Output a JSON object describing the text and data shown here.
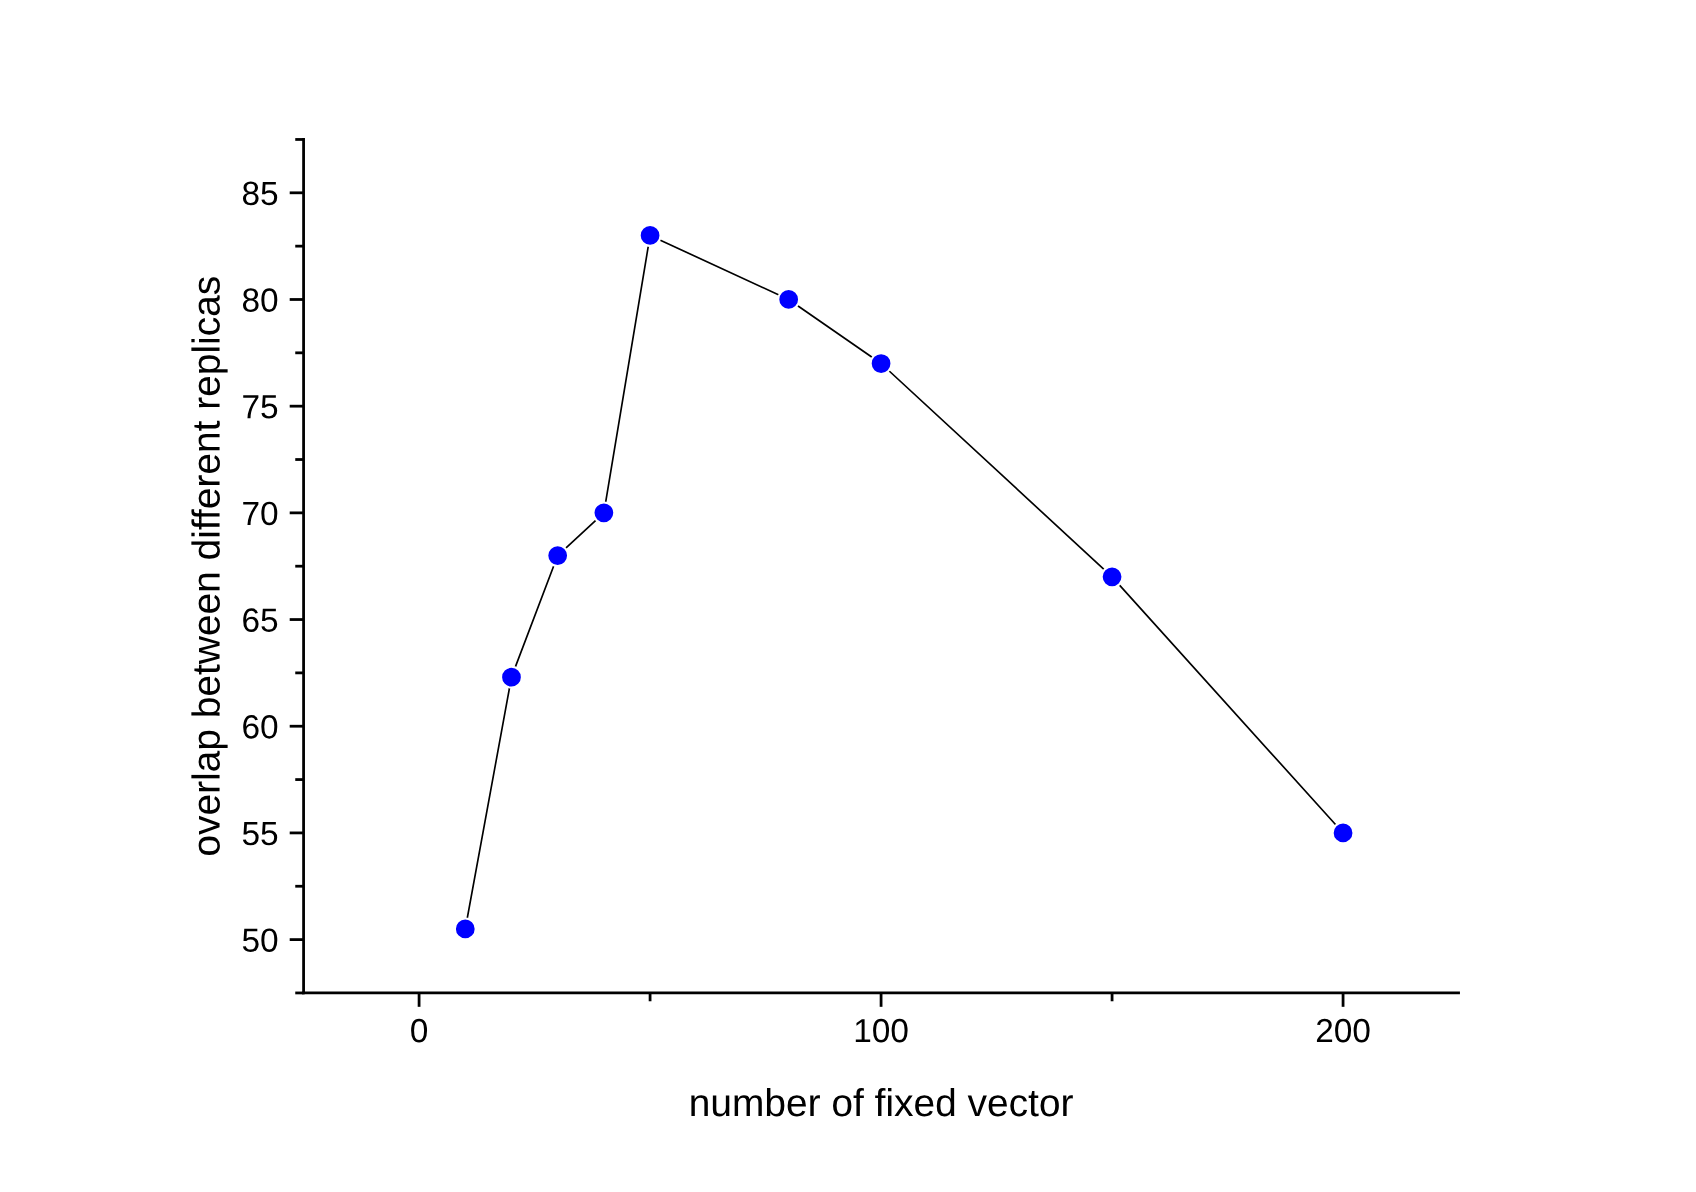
{
  "chart_data": {
    "type": "line",
    "xlabel": "number of fixed vector",
    "ylabel": "overlap between different replicas",
    "series": [
      {
        "color": "#000000",
        "x": [
          10,
          20,
          30,
          40,
          50,
          80,
          100,
          150,
          200
        ],
        "values": [
          50.5,
          62.3,
          68,
          70,
          83,
          80,
          77,
          67,
          55
        ]
      }
    ],
    "marker": "circle",
    "line_style": "solid",
    "grid": false,
    "legend": false,
    "xlim": [
      -25,
      225
    ],
    "xticks": [
      0,
      {
        "value": 50,
        "label": null
      },
      100,
      {
        "value": 150,
        "label": null
      },
      200
    ],
    "ylim": [
      47.5,
      87.5
    ],
    "yticks": [
      {
        "value": 47.5,
        "label": null
      },
      50,
      {
        "value": 52.5,
        "label": null
      },
      55,
      {
        "value": 57.5,
        "label": null
      },
      60,
      {
        "value": 62.5,
        "label": null
      },
      65,
      {
        "value": 67.5,
        "label": null
      },
      70,
      {
        "value": 72.5,
        "label": null
      },
      75,
      {
        "value": 77.5,
        "label": null
      },
      80,
      {
        "value": 82.5,
        "label": null
      },
      85,
      {
        "value": 87.5,
        "label": null
      }
    ]
  }
}
